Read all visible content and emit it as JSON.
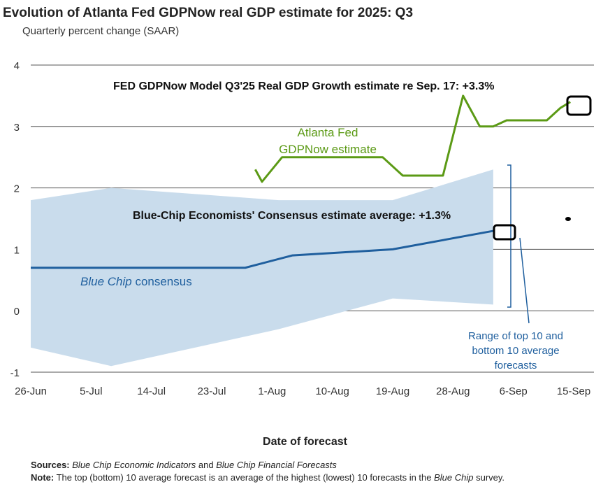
{
  "header": {
    "title": "Evolution of Atlanta Fed GDPNow real GDP estimate for 2025: Q3",
    "subtitle": "Quarterly percent change (SAAR)"
  },
  "footer": {
    "sources_label": "Sources:",
    "sources_part1": "Blue Chip Economic Indicators",
    "sources_and": " and ",
    "sources_part2": "Blue Chip Financial Forecasts",
    "note_label": "Note:",
    "note_text": " The top (bottom) 10 average forecast is an average of the highest (lowest) 10 forecasts in the ",
    "note_italic": "Blue Chip",
    "note_end": " survey."
  },
  "chart_data": {
    "type": "line",
    "title": "Evolution of Atlanta Fed GDPNow real GDP estimate for 2025: Q3",
    "subtitle": "Quarterly percent change (SAAR)",
    "xlabel": "Date of forecast",
    "ylabel": "",
    "ylim": [
      -1,
      4
    ],
    "yticks": [
      -1,
      0,
      1,
      2,
      3,
      4
    ],
    "xlim_days": [
      0,
      82
    ],
    "xtick_labels": [
      "26-Jun",
      "5-Jul",
      "14-Jul",
      "23-Jul",
      "1-Aug",
      "10-Aug",
      "19-Aug",
      "28-Aug",
      "6-Sep",
      "15-Sep"
    ],
    "xtick_days": [
      0,
      9,
      18,
      27,
      36,
      45,
      54,
      63,
      72,
      81
    ],
    "grid": true,
    "series": [
      {
        "name": "Atlanta Fed GDPNow estimate",
        "label_line1": "Atlanta Fed",
        "label_line2": "GDPNow estimate",
        "color": "#5b9a15",
        "x": [
          33.5,
          34.5,
          37.5,
          40.5,
          43.5,
          46.5,
          49.5,
          52.5,
          55.5,
          58.5,
          61.5,
          64.5,
          67,
          69,
          71,
          74,
          77,
          79,
          80.5
        ],
        "y": [
          2.3,
          2.1,
          2.5,
          2.5,
          2.5,
          2.5,
          2.5,
          2.5,
          2.2,
          2.2,
          2.2,
          3.5,
          3.0,
          3.0,
          3.1,
          3.1,
          3.1,
          3.3,
          3.4
        ]
      },
      {
        "name": "Blue Chip consensus",
        "label_italic": "Blue Chip",
        "label_rest": " consensus",
        "color": "#1f5f9e",
        "x": [
          0,
          32,
          39,
          54,
          69
        ],
        "y": [
          0.7,
          0.7,
          0.9,
          1.0,
          1.3
        ]
      }
    ],
    "range_band": {
      "name": "Range of top 10 and bottom 10 average forecasts",
      "color": "#c9dcec",
      "x": [
        0,
        12,
        37,
        54,
        69
      ],
      "upper": [
        1.8,
        2.0,
        1.8,
        1.8,
        2.3
      ],
      "lower": [
        -0.6,
        -0.9,
        -0.3,
        0.2,
        0.1
      ]
    },
    "annotations": {
      "gdpnow_text": "FED GDPNow Model Q3'25 Real GDP Growth estimate re Sep. 17: +3.3%",
      "bluechip_text": "Blue-Chip Economists' Consensus estimate average: +1.3%",
      "range_line1": "Range of top 10 and",
      "range_line2": "bottom 10 average",
      "range_line3": "forecasts"
    }
  }
}
